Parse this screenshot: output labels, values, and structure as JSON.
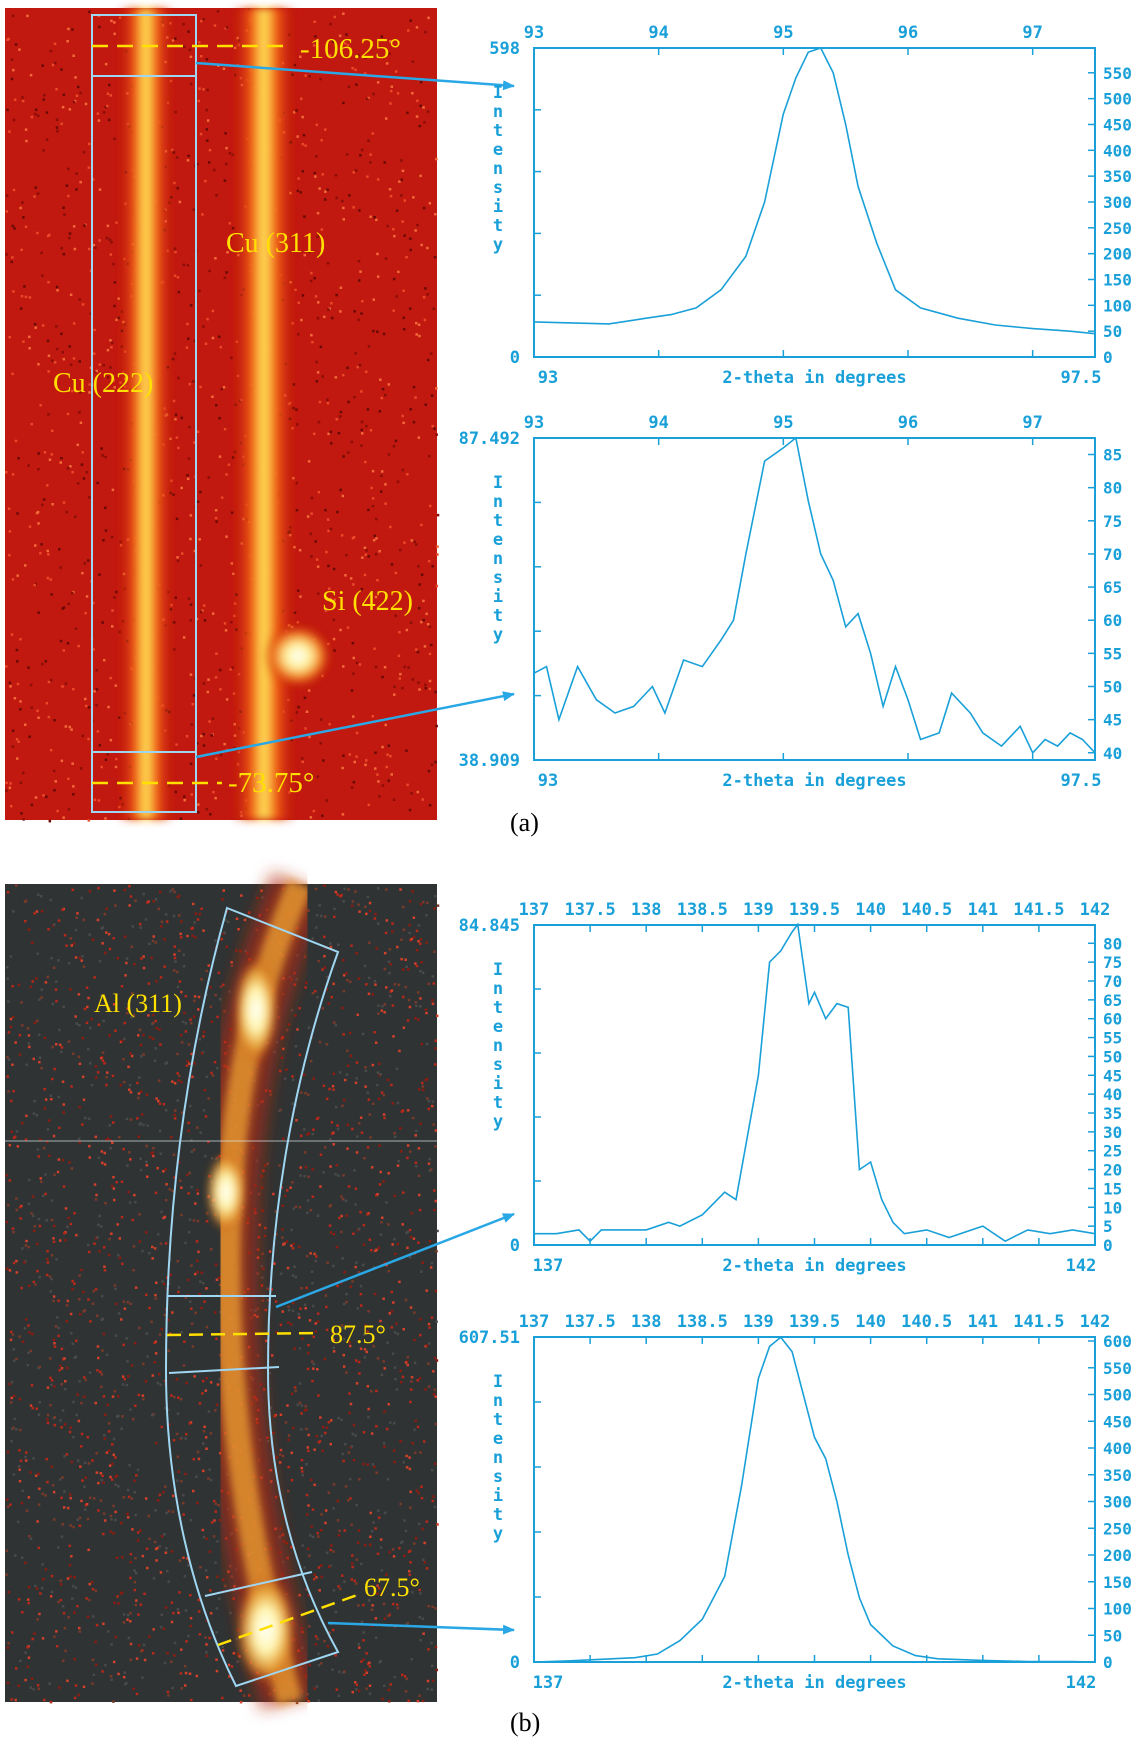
{
  "figure": {
    "panel_a": {
      "label": "(a)",
      "image_labels": [
        "Cu (311)",
        "Cu (222)",
        "Si (422)"
      ],
      "angle_labels": [
        "-106.25°",
        "-73.75°"
      ]
    },
    "panel_b": {
      "label": "(b)",
      "image_labels": [
        "Al (311)"
      ],
      "angle_labels": [
        "87.5°",
        "67.5°"
      ]
    }
  },
  "colors": {
    "axis": "#1aa0d8",
    "annotation_line": "#2aa8e6",
    "label_yellow": "#ffe000",
    "band_red": "#c11a12",
    "background_dark": "#2f3333"
  },
  "chart_data": [
    {
      "type": "line",
      "xlabel": "2-theta in degrees",
      "ylabel": "Intensity",
      "xlim": [
        93,
        97.5
      ],
      "ylim": [
        0,
        598
      ],
      "left_labels": [
        "598",
        "0"
      ],
      "top_ticks": [
        "93",
        "94",
        "95",
        "96",
        "97"
      ],
      "bottom_ticks": [
        "93",
        "97.5"
      ],
      "right_ticks": [
        "550",
        "500",
        "450",
        "400",
        "350",
        "300",
        "250",
        "200",
        "150",
        "100",
        "50",
        "0"
      ],
      "right_tick_values": [
        550,
        500,
        450,
        400,
        350,
        300,
        250,
        200,
        150,
        100,
        50,
        0
      ],
      "x": [
        93.0,
        93.3,
        93.6,
        93.9,
        94.1,
        94.3,
        94.5,
        94.7,
        94.85,
        95.0,
        95.1,
        95.2,
        95.3,
        95.4,
        95.5,
        95.6,
        95.75,
        95.9,
        96.1,
        96.4,
        96.7,
        97.0,
        97.3,
        97.5
      ],
      "y": [
        68,
        66,
        64,
        75,
        82,
        95,
        130,
        195,
        300,
        470,
        540,
        590,
        598,
        550,
        450,
        330,
        220,
        130,
        95,
        75,
        62,
        55,
        50,
        45
      ]
    },
    {
      "type": "line",
      "xlabel": "2-theta in degrees",
      "ylabel": "Intensity",
      "xlim": [
        93,
        97.5
      ],
      "ylim": [
        38.909,
        87.492
      ],
      "left_labels": [
        "87.492",
        "38.909"
      ],
      "top_ticks": [
        "93",
        "94",
        "95",
        "96",
        "97"
      ],
      "bottom_ticks": [
        "93",
        "97.5"
      ],
      "right_ticks": [
        "85",
        "80",
        "75",
        "70",
        "65",
        "60",
        "55",
        "50",
        "45",
        "40"
      ],
      "right_tick_values": [
        85,
        80,
        75,
        70,
        65,
        60,
        55,
        50,
        45,
        40
      ],
      "x": [
        93.0,
        93.1,
        93.2,
        93.35,
        93.5,
        93.65,
        93.8,
        93.95,
        94.05,
        94.2,
        94.35,
        94.5,
        94.6,
        94.7,
        94.85,
        95.0,
        95.1,
        95.2,
        95.3,
        95.4,
        95.5,
        95.6,
        95.7,
        95.8,
        95.9,
        96.0,
        96.1,
        96.25,
        96.35,
        96.5,
        96.6,
        96.75,
        96.9,
        97.0,
        97.1,
        97.2,
        97.3,
        97.4,
        97.5
      ],
      "y": [
        52,
        53,
        45,
        53,
        48,
        46,
        47,
        50,
        46,
        54,
        53,
        57,
        60,
        70,
        84,
        86,
        87.5,
        78,
        70,
        66,
        59,
        61,
        55,
        47,
        53,
        48,
        42,
        43,
        49,
        46,
        43,
        41,
        44,
        40,
        42,
        41,
        43,
        42,
        40
      ]
    },
    {
      "type": "line",
      "xlabel": "2-theta in degrees",
      "ylabel": "Intensity",
      "xlim": [
        137,
        142
      ],
      "ylim": [
        0,
        84.845
      ],
      "left_labels": [
        "84.845",
        "0"
      ],
      "top_ticks": [
        "137",
        "137.5",
        "138",
        "138.5",
        "139",
        "139.5",
        "140",
        "140.5",
        "141",
        "141.5",
        "142"
      ],
      "bottom_ticks": [
        "137",
        "142"
      ],
      "right_ticks": [
        "80",
        "75",
        "70",
        "65",
        "60",
        "55",
        "50",
        "45",
        "40",
        "35",
        "30",
        "25",
        "20",
        "15",
        "10",
        "5",
        "0"
      ],
      "right_tick_values": [
        80,
        75,
        70,
        65,
        60,
        55,
        50,
        45,
        40,
        35,
        30,
        25,
        20,
        15,
        10,
        5,
        0
      ],
      "x": [
        137.0,
        137.2,
        137.4,
        137.5,
        137.6,
        137.8,
        138.0,
        138.2,
        138.3,
        138.5,
        138.7,
        138.8,
        139.0,
        139.1,
        139.2,
        139.3,
        139.35,
        139.45,
        139.5,
        139.6,
        139.7,
        139.8,
        139.9,
        140.0,
        140.1,
        140.2,
        140.3,
        140.5,
        140.7,
        141.0,
        141.2,
        141.4,
        141.6,
        141.8,
        142.0
      ],
      "y": [
        3,
        3,
        4,
        1,
        4,
        4,
        4,
        6,
        5,
        8,
        14,
        12,
        45,
        75,
        78,
        83,
        85,
        64,
        67,
        60,
        64,
        63,
        20,
        22,
        12,
        6,
        3,
        4,
        2,
        5,
        1,
        4,
        3,
        4,
        3
      ]
    },
    {
      "type": "line",
      "xlabel": "2-theta in degrees",
      "ylabel": "Intensity",
      "xlim": [
        137,
        142
      ],
      "ylim": [
        0,
        607.51
      ],
      "left_labels": [
        "607.51",
        "0"
      ],
      "top_ticks": [
        "137",
        "137.5",
        "138",
        "138.5",
        "139",
        "139.5",
        "140",
        "140.5",
        "141",
        "141.5",
        "142"
      ],
      "bottom_ticks": [
        "137",
        "142"
      ],
      "right_ticks": [
        "600",
        "550",
        "500",
        "450",
        "400",
        "350",
        "300",
        "250",
        "200",
        "150",
        "100",
        "50",
        "0"
      ],
      "right_tick_values": [
        600,
        550,
        500,
        450,
        400,
        350,
        300,
        250,
        200,
        150,
        100,
        50,
        0
      ],
      "x": [
        137.0,
        137.3,
        137.6,
        137.9,
        138.1,
        138.3,
        138.5,
        138.7,
        138.85,
        139.0,
        139.1,
        139.2,
        139.3,
        139.4,
        139.5,
        139.6,
        139.7,
        139.8,
        139.9,
        140.0,
        140.2,
        140.4,
        140.6,
        141.0,
        141.4,
        141.8,
        142.0
      ],
      "y": [
        0,
        2,
        5,
        8,
        15,
        40,
        80,
        160,
        330,
        530,
        590,
        607,
        580,
        500,
        420,
        380,
        300,
        200,
        120,
        70,
        30,
        12,
        6,
        3,
        1,
        1,
        0
      ]
    }
  ]
}
